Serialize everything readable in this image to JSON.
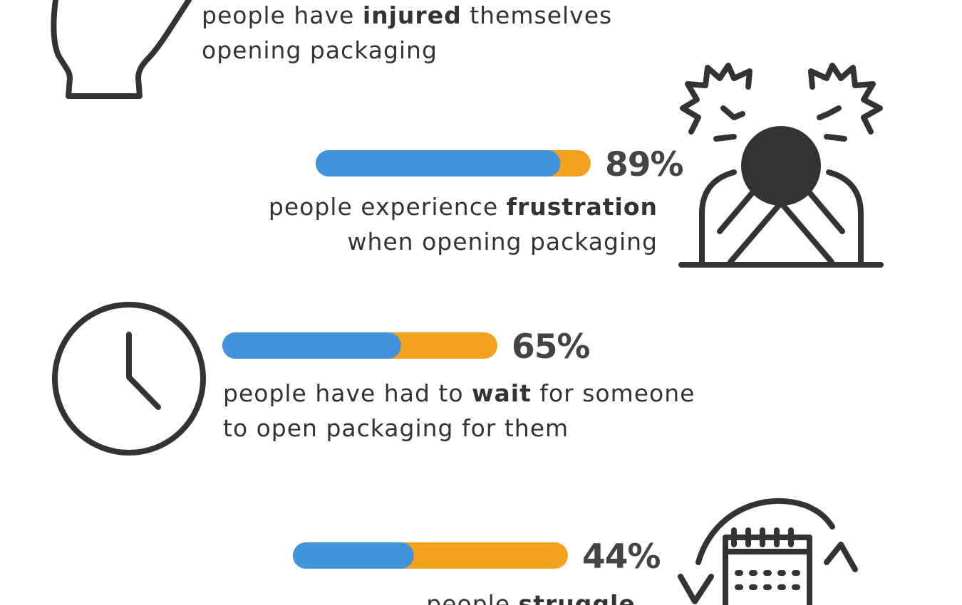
{
  "items": [
    {
      "lines": [
        [
          {
            "text": "people have "
          },
          {
            "text": "injured",
            "bold": true
          },
          {
            "text": " themselves"
          }
        ],
        [
          {
            "text": "opening packaging"
          }
        ]
      ]
    },
    {
      "value": 89,
      "value_label": "89%",
      "lines": [
        [
          {
            "text": "people experience "
          },
          {
            "text": "frustration",
            "bold": true
          }
        ],
        [
          {
            "text": "when opening packaging"
          }
        ]
      ]
    },
    {
      "value": 65,
      "value_label": "65%",
      "lines": [
        [
          {
            "text": "people have had to "
          },
          {
            "text": "wait",
            "bold": true
          },
          {
            "text": " for someone"
          }
        ],
        [
          {
            "text": "to open packaging for them"
          }
        ]
      ]
    },
    {
      "value": 44,
      "value_label": "44%",
      "lines": [
        [
          {
            "text": "people "
          },
          {
            "text": "struggle",
            "bold": true
          }
        ]
      ]
    }
  ],
  "colors": {
    "fill": "#4193db",
    "track": "#f4a21e"
  }
}
